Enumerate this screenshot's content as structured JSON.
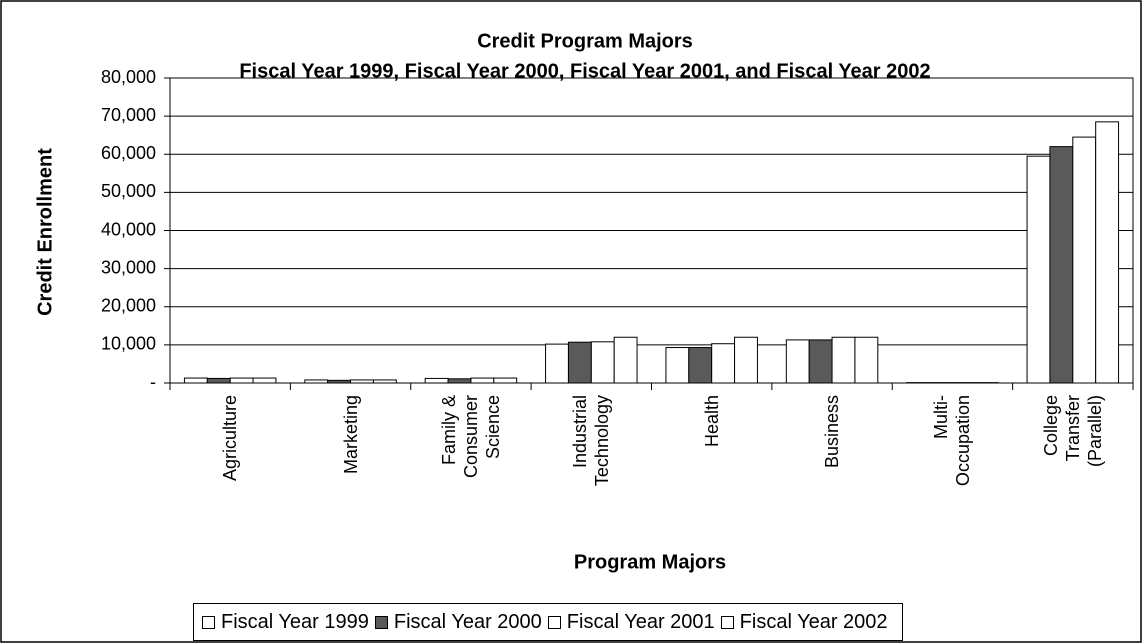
{
  "chart_data": {
    "type": "bar",
    "title": "Credit Program Majors",
    "subtitle": "Fiscal Year 1999, Fiscal Year 2000, Fiscal Year 2001, and Fiscal Year 2002",
    "y_axis_label": "Credit Enrollment",
    "x_axis_label": "Program Majors",
    "categories": [
      "Agriculture",
      "Marketing",
      "Family &\nConsumer\nScience",
      "Industrial\nTechnology",
      "Health",
      "Business",
      "Multi-\nOccupation",
      "College\nTransfer\n(Parallel)"
    ],
    "series": [
      {
        "name": "Fiscal Year 1999",
        "color": "#ffffff",
        "values": [
          1300,
          800,
          1200,
          10200,
          9300,
          11300,
          100,
          59500
        ]
      },
      {
        "name": "Fiscal Year 2000",
        "color": "#5a5a5a",
        "values": [
          1200,
          700,
          1100,
          10700,
          9300,
          11300,
          100,
          62000
        ]
      },
      {
        "name": "Fiscal Year 2001",
        "color": "#ffffff",
        "values": [
          1300,
          800,
          1300,
          10800,
          10300,
          12000,
          100,
          64500
        ]
      },
      {
        "name": "Fiscal Year 2002",
        "color": "#ffffff",
        "values": [
          1300,
          800,
          1300,
          12000,
          12000,
          12000,
          100,
          68500
        ]
      }
    ],
    "ylim": [
      0,
      80000
    ],
    "yticks": [
      {
        "value": 0,
        "label": "-"
      },
      {
        "value": 10000,
        "label": "10,000"
      },
      {
        "value": 20000,
        "label": "20,000"
      },
      {
        "value": 30000,
        "label": "30,000"
      },
      {
        "value": 40000,
        "label": "40,000"
      },
      {
        "value": 50000,
        "label": "50,000"
      },
      {
        "value": 60000,
        "label": "60,000"
      },
      {
        "value": 70000,
        "label": "70,000"
      },
      {
        "value": 80000,
        "label": "80,000"
      }
    ],
    "grid": true,
    "legend": "bottom"
  }
}
